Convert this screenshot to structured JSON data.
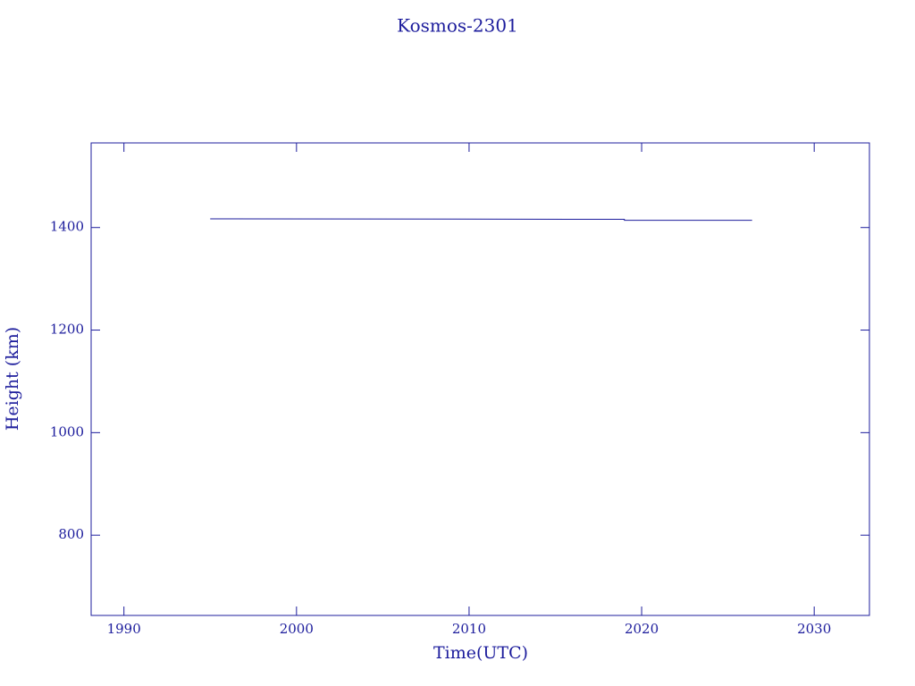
{
  "chart_data": {
    "type": "line",
    "title": "Kosmos-2301",
    "x_label": "Time(UTC)",
    "y_label": "Height (km)",
    "x": [
      1995.0,
      2019.0,
      2019.0,
      2026.4
    ],
    "series": [
      {
        "color": "#1c1c9c",
        "values": [
          1417,
          1416,
          1414,
          1414
        ]
      }
    ],
    "xlim": [
      1988.1,
      2033.2
    ],
    "xticks": [
      1990,
      2000,
      2010,
      2020,
      2030
    ],
    "ylim": [
      643.5,
      1565
    ],
    "yticks": [
      800,
      1000,
      1200,
      1400
    ],
    "axis_color": "#1c1c9c"
  }
}
